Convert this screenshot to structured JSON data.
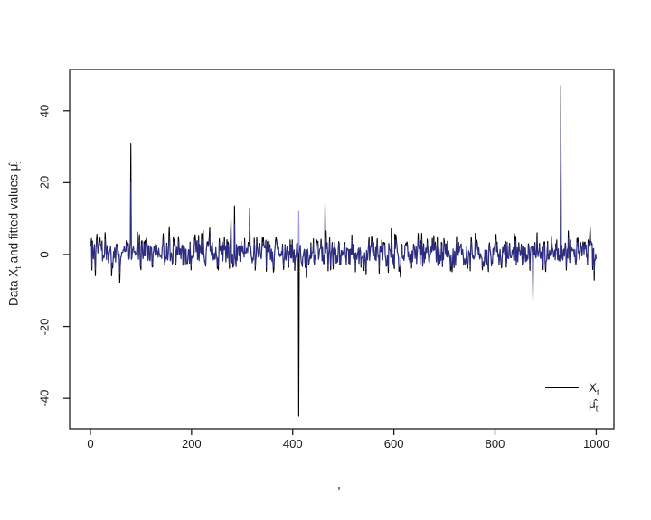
{
  "figure": {
    "background": "#ffffff",
    "frame_color": "#1f1f1f",
    "y_axis_label": {
      "prefix": "Data X",
      "sub_x": "t",
      "middle": " and fitted values ",
      "mu_hat": "μ̂",
      "sub_mu": "t"
    },
    "stray_mark": "'"
  },
  "legend": {
    "items": [
      {
        "label_main": "X",
        "label_sub": "t",
        "line_color": "#000000"
      },
      {
        "label_main": "μ̂",
        "label_sub": "t",
        "line_color": "#b2b2ef"
      }
    ]
  },
  "chart_data": {
    "type": "line",
    "title": "",
    "xlabel": "",
    "ylabel": "Data X_t and fitted values μ̂_t",
    "legend_labels": [
      "X_t",
      "μ̂_t"
    ],
    "legend_position": "bottom-right",
    "grid": false,
    "frame_color": "#1f1f1f",
    "x_ticks": [
      0,
      200,
      400,
      600,
      800,
      1000
    ],
    "y_ticks": [
      -40,
      -20,
      0,
      20,
      40
    ],
    "xlim": [
      -41,
      1035
    ],
    "ylim": [
      -48.5,
      51.5
    ],
    "n_points": 1000,
    "series": [
      {
        "name": "X_t",
        "role": "observed-data",
        "color": "#000000",
        "seed": 20240311,
        "noise_mean": 0.4,
        "noise_sd": 2.2,
        "ar_phi": 0.25,
        "heavy_tail_prob": 0.05,
        "heavy_tail_scale": 2.2
      },
      {
        "name": "mu_hat_t",
        "role": "fitted-values",
        "color": "rgba(80,80,230,0.55)",
        "softclip_start": 2,
        "softclip_slope": 0.55
      }
    ],
    "outliers": [
      {
        "t": 80,
        "X": 31,
        "mu": 20
      },
      {
        "t": 285,
        "X": 13.5
      },
      {
        "t": 315,
        "X": 13
      },
      {
        "t": 412,
        "X": -45,
        "mu": 12
      },
      {
        "t": 464,
        "X": 14
      },
      {
        "t": 875,
        "X": -12.5
      },
      {
        "t": 930,
        "X": 47,
        "mu": 37
      }
    ]
  }
}
